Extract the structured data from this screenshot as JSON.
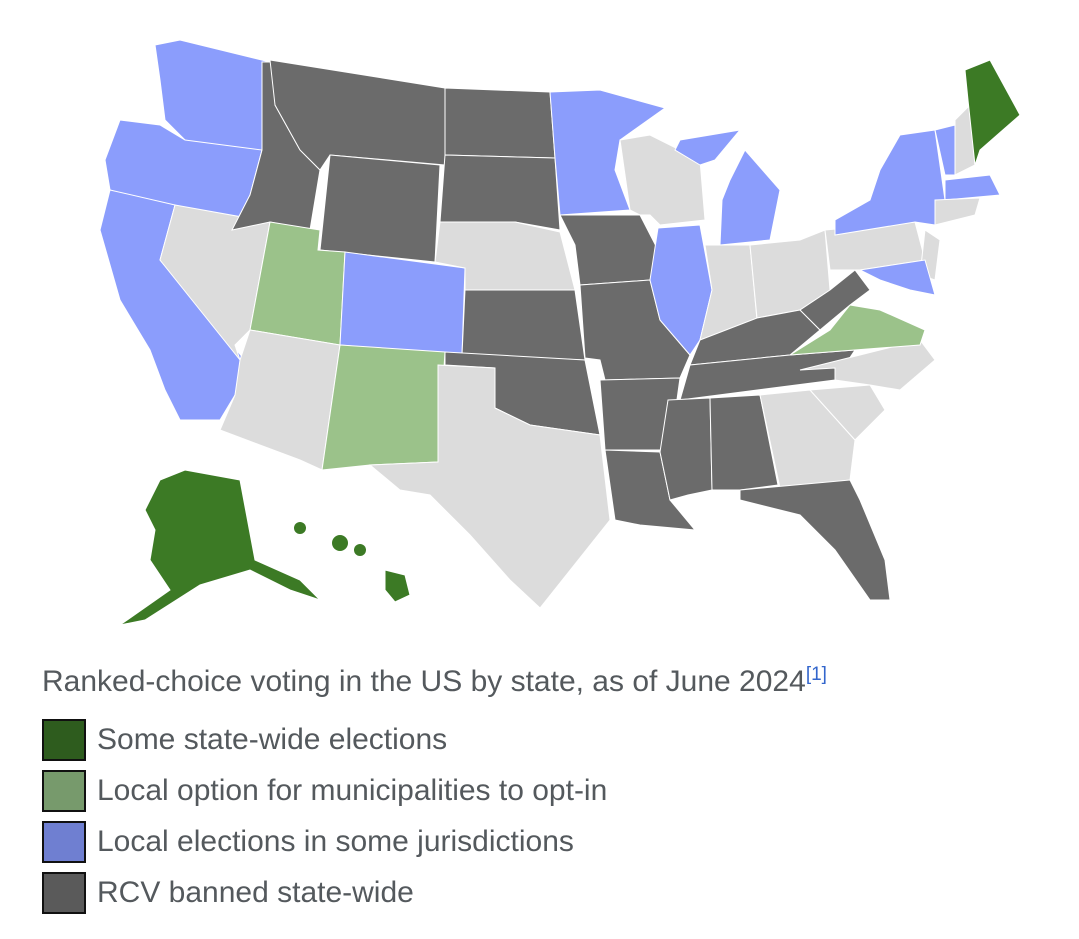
{
  "caption": "Ranked-choice voting in the US by state, as of June 2024",
  "caption_ref": "[1]",
  "legend": [
    {
      "key": "statewide",
      "label": "Some state-wide elections",
      "color": "#2e5c1e"
    },
    {
      "key": "option",
      "label": "Local option for municipalities to opt-in",
      "color": "#779a6c"
    },
    {
      "key": "local",
      "label": "Local elections in some jurisdictions",
      "color": "#6f7fd1"
    },
    {
      "key": "banned",
      "label": "RCV banned state-wide",
      "color": "#5a5a5a"
    }
  ],
  "map_colors": {
    "statewide": "#3c7a25",
    "option": "#9bc28a",
    "local": "#8b9dfc",
    "banned": "#6b6b6b",
    "none": "#dcdcdc"
  },
  "states": {
    "WA": "local",
    "OR": "local",
    "CA": "local",
    "NV": "none",
    "ID": "banned",
    "MT": "banned",
    "WY": "banned",
    "UT": "option",
    "CO": "local",
    "AZ": "none",
    "NM": "option",
    "ND": "banned",
    "SD": "banned",
    "NE": "none",
    "KS": "banned",
    "OK": "banned",
    "TX": "none",
    "MN": "local",
    "IA": "banned",
    "MO": "banned",
    "AR": "banned",
    "LA": "banned",
    "WI": "none",
    "IL": "local",
    "MI": "local",
    "IN": "none",
    "OH": "none",
    "KY": "banned",
    "TN": "banned",
    "MS": "banned",
    "AL": "banned",
    "GA": "none",
    "FL": "banned",
    "SC": "none",
    "NC": "none",
    "VA": "option",
    "WV": "banned",
    "PA": "none",
    "NY": "local",
    "VT": "local",
    "NH": "none",
    "ME": "statewide",
    "MA": "local",
    "CT": "none",
    "NJ": "none",
    "MD": "local",
    "AK": "statewide",
    "HI": "statewide"
  }
}
